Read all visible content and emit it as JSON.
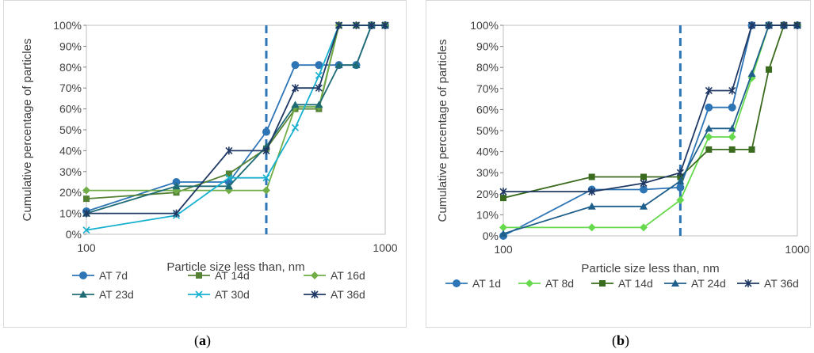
{
  "chart_data": [
    {
      "type": "line",
      "panel": "a",
      "caption": "(a)",
      "caption_open": "(",
      "caption_letter": "a",
      "caption_close": ")",
      "xlabel": "Particle size less than, nm",
      "ylabel": "Cumulative percentage of particles",
      "xscale": "log",
      "xlim": [
        100,
        1000
      ],
      "ylim": [
        0,
        100
      ],
      "x_ticks": [
        "100",
        "1000"
      ],
      "y_ticks": [
        "0%",
        "10%",
        "20%",
        "30%",
        "40%",
        "50%",
        "60%",
        "70%",
        "80%",
        "90%",
        "100%"
      ],
      "vline": 400,
      "legend_position": "bottom",
      "series": [
        {
          "name": "AT 7d",
          "color": "#2e75b6",
          "marker": "circle",
          "x": [
            100,
            200,
            300,
            400,
            500,
            600,
            700,
            800,
            900,
            1000
          ],
          "y": [
            11,
            25,
            25,
            49,
            81,
            81,
            81,
            81,
            100,
            100
          ]
        },
        {
          "name": "AT 14d",
          "color": "#548235",
          "marker": "square",
          "x": [
            100,
            200,
            300,
            400,
            500,
            600,
            700,
            800,
            900,
            1000
          ],
          "y": [
            17,
            20,
            29,
            41,
            60,
            60,
            100,
            100,
            100,
            100
          ]
        },
        {
          "name": "AT 16d",
          "color": "#70ad47",
          "marker": "diamond",
          "x": [
            100,
            200,
            300,
            400,
            500,
            600,
            700,
            800,
            900,
            1000
          ],
          "y": [
            21,
            21,
            21,
            21,
            61,
            61,
            100,
            100,
            100,
            100
          ]
        },
        {
          "name": "AT 23d",
          "color": "#1f6b75",
          "marker": "triangle",
          "x": [
            100,
            200,
            300,
            400,
            500,
            600,
            700,
            800,
            900,
            1000
          ],
          "y": [
            10,
            23,
            23,
            42,
            62,
            62,
            81,
            81,
            100,
            100
          ]
        },
        {
          "name": "AT 30d",
          "color": "#17b0cf",
          "marker": "x",
          "x": [
            100,
            200,
            300,
            400,
            500,
            600,
            700,
            800,
            900,
            1000
          ],
          "y": [
            2,
            9,
            27,
            27,
            51,
            76,
            100,
            100,
            100,
            100
          ]
        },
        {
          "name": "AT 36d",
          "color": "#1f3864",
          "marker": "star",
          "x": [
            100,
            200,
            300,
            400,
            500,
            600,
            700,
            800,
            900,
            1000
          ],
          "y": [
            10,
            10,
            40,
            40,
            70,
            70,
            100,
            100,
            100,
            100
          ]
        }
      ]
    },
    {
      "type": "line",
      "panel": "b",
      "caption": "(b)",
      "caption_open": "(",
      "caption_letter": "b",
      "caption_close": ")",
      "xlabel": "Particle size less than, nm",
      "ylabel": "Cumulative percentage of particles",
      "xscale": "log",
      "xlim": [
        100,
        1000
      ],
      "ylim": [
        0,
        100
      ],
      "x_ticks": [
        "100",
        "1000"
      ],
      "y_ticks": [
        "0%",
        "10%",
        "20%",
        "30%",
        "40%",
        "50%",
        "60%",
        "70%",
        "80%",
        "90%",
        "100%"
      ],
      "vline": 400,
      "legend_position": "bottom",
      "series": [
        {
          "name": "AT 1d",
          "color": "#2e75b6",
          "marker": "circle",
          "x": [
            100,
            200,
            300,
            400,
            500,
            600,
            700,
            800,
            900,
            1000
          ],
          "y": [
            0,
            22,
            22,
            23,
            61,
            61,
            100,
            100,
            100,
            100
          ]
        },
        {
          "name": "AT 8d",
          "color": "#66d94c",
          "marker": "diamond",
          "x": [
            100,
            200,
            300,
            400,
            500,
            600,
            700,
            800,
            900,
            1000
          ],
          "y": [
            4,
            4,
            4,
            17,
            47,
            47,
            75,
            100,
            100,
            100
          ]
        },
        {
          "name": "AT 14d",
          "color": "#3a6b1e",
          "marker": "square",
          "x": [
            100,
            200,
            300,
            400,
            500,
            600,
            700,
            800,
            900,
            1000
          ],
          "y": [
            18,
            28,
            28,
            28,
            41,
            41,
            41,
            79,
            100,
            100
          ]
        },
        {
          "name": "AT 24d",
          "color": "#1f5f8b",
          "marker": "triangle",
          "x": [
            100,
            200,
            300,
            400,
            500,
            600,
            700,
            800,
            900,
            1000
          ],
          "y": [
            1,
            14,
            14,
            26,
            51,
            51,
            77,
            100,
            100,
            100
          ]
        },
        {
          "name": "AT 36d",
          "color": "#1f3864",
          "marker": "star",
          "x": [
            100,
            200,
            300,
            400,
            500,
            600,
            700,
            800,
            900,
            1000
          ],
          "y": [
            21,
            21,
            25,
            30,
            69,
            69,
            100,
            100,
            100,
            100
          ]
        }
      ]
    }
  ]
}
